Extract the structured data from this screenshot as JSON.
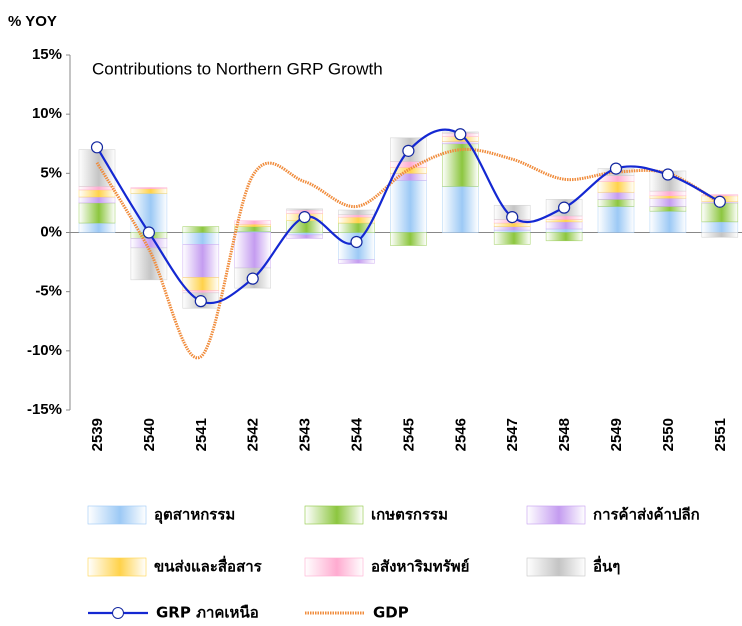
{
  "chart_data": {
    "type": "bar",
    "stacked": true,
    "title": "Contributions to Northern GRP Growth",
    "y_label": "% YOY",
    "categories": [
      "2539",
      "2540",
      "2541",
      "2542",
      "2543",
      "2544",
      "2545",
      "2546",
      "2547",
      "2548",
      "2549",
      "2550",
      "2551"
    ],
    "ylim": [
      -15,
      15
    ],
    "yticks": [
      {
        "value": -15,
        "label": "-15%"
      },
      {
        "value": -10,
        "label": "-10%"
      },
      {
        "value": -5,
        "label": "-5%"
      },
      {
        "value": 0,
        "label": "0%"
      },
      {
        "value": 5,
        "label": "5%"
      },
      {
        "value": 10,
        "label": "10%"
      },
      {
        "value": 15,
        "label": "15%"
      }
    ],
    "legend": "bottom",
    "series": [
      {
        "name": "อุตสาหกรรม",
        "color": "#9cc9f5",
        "values": [
          0.8,
          3.3,
          -1.0,
          0.1,
          -0.2,
          -2.3,
          4.4,
          3.9,
          0.2,
          0.3,
          2.2,
          1.8,
          0.9
        ]
      },
      {
        "name": "เกษตรกรรม",
        "color": "#8cc63f",
        "values": [
          1.7,
          -0.5,
          0.5,
          0.4,
          1.0,
          0.8,
          -1.1,
          3.6,
          -1.0,
          -0.7,
          0.6,
          0.4,
          1.6
        ]
      },
      {
        "name": "การค้าส่งค้าปลีก",
        "color": "#c49cf0",
        "values": [
          0.5,
          -0.8,
          -2.8,
          -3.0,
          -0.3,
          -0.3,
          0.6,
          0.2,
          0.3,
          0.6,
          0.6,
          0.7,
          0.1
        ]
      },
      {
        "name": "ขนส่งและสื่อสาร",
        "color": "#ffd24a",
        "values": [
          0.6,
          0.4,
          -1.1,
          0.2,
          0.6,
          0.5,
          0.5,
          0.4,
          0.3,
          0.2,
          0.9,
          0.2,
          0.5
        ]
      },
      {
        "name": "อสังหาริมทรัพย์",
        "color": "#ffabd0",
        "values": [
          0.3,
          0.1,
          -0.2,
          0.3,
          0.3,
          0.2,
          0.5,
          0.3,
          0.3,
          0.3,
          0.5,
          0.4,
          0.1
        ]
      },
      {
        "name": "อื่นๆ",
        "color": "#c4c4c4",
        "values": [
          3.1,
          -2.7,
          -1.3,
          -1.7,
          0.1,
          0.4,
          2.0,
          0.1,
          1.2,
          1.4,
          0.6,
          1.7,
          -0.4
        ]
      },
      {
        "name": "GRP ภาคเหนือ",
        "color": "#1428d2",
        "type": "line",
        "markers": true,
        "values": [
          7.2,
          0.0,
          -5.8,
          -3.9,
          1.3,
          -0.8,
          6.9,
          8.3,
          1.3,
          2.1,
          5.4,
          4.9,
          2.6
        ]
      },
      {
        "name": "GDP",
        "color": "#f08c3c",
        "type": "line",
        "markers": false,
        "values": [
          5.9,
          -1.4,
          -10.5,
          4.8,
          4.3,
          2.2,
          5.3,
          7.0,
          6.2,
          4.5,
          5.1,
          5.0,
          2.5
        ]
      }
    ]
  }
}
